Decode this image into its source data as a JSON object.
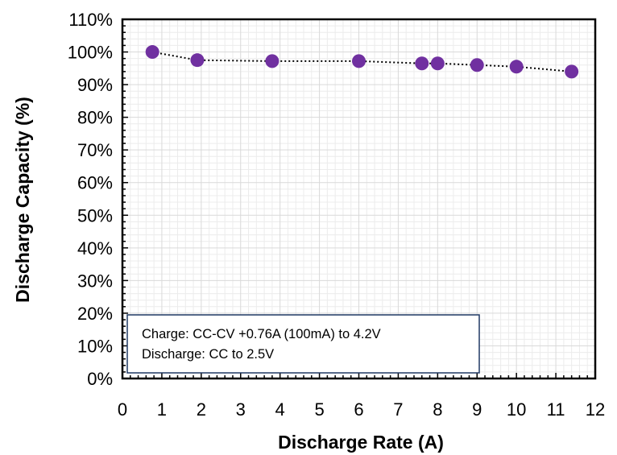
{
  "chart_data": {
    "type": "scatter",
    "xlabel": "Discharge Rate (A)",
    "ylabel": "Discharge Capacity (%)",
    "xlim": [
      0,
      12
    ],
    "ylim": [
      0,
      110
    ],
    "x_ticks": [
      "0",
      "1",
      "2",
      "3",
      "4",
      "5",
      "6",
      "7",
      "8",
      "9",
      "10",
      "11",
      "12"
    ],
    "y_ticks": [
      "0%",
      "10%",
      "20%",
      "30%",
      "40%",
      "50%",
      "60%",
      "70%",
      "80%",
      "90%",
      "100%",
      "110%"
    ],
    "grid": true,
    "legend": "none",
    "series": [
      {
        "line_style": "dotted",
        "marker": "circle",
        "color": "#7030A0",
        "x": [
          0.76,
          1.9,
          3.8,
          6.0,
          7.6,
          8.0,
          9.0,
          10.0,
          11.4
        ],
        "y": [
          100.0,
          97.5,
          97.2,
          97.2,
          96.5,
          96.5,
          96.0,
          95.5,
          94.0
        ]
      }
    ],
    "annotation": {
      "line1": "Charge: CC-CV +0.76A (100mA) to 4.2V",
      "line2": "Discharge: CC to 2.5V"
    }
  },
  "colors": {
    "marker": "#7030A0",
    "grid": "#d9d9d9",
    "axis": "#000000",
    "annotation_border": "#1f3864"
  }
}
